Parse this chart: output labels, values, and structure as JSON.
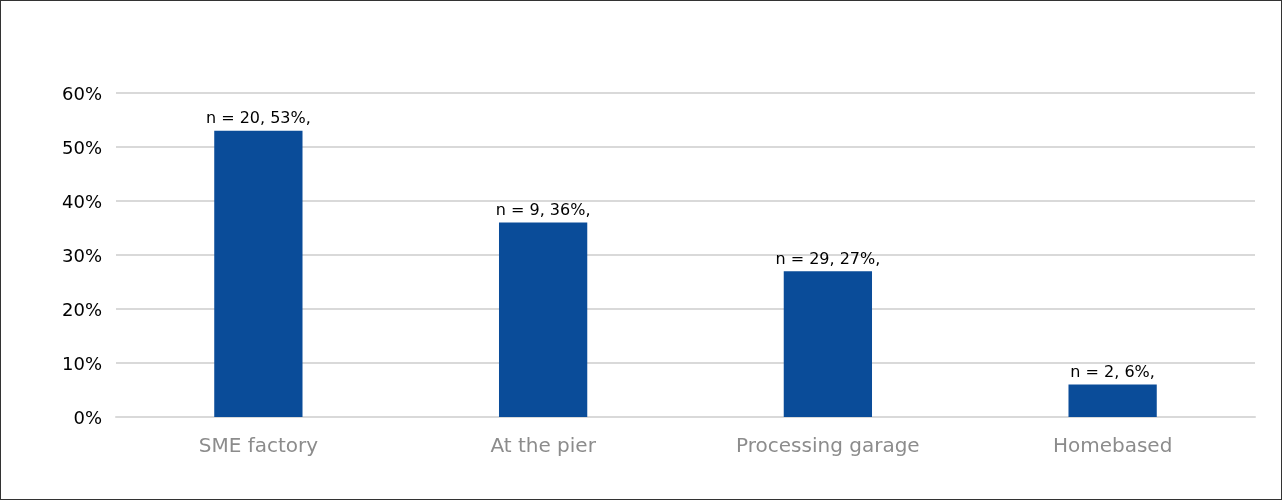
{
  "chart_data": {
    "type": "bar",
    "categories": [
      "SME factory",
      "At the pier",
      "Processing garage",
      "Homebased"
    ],
    "values": [
      53,
      36,
      27,
      6
    ],
    "value_labels": [
      "n = 20, 53%,",
      "n = 9, 36%,",
      "n = 29, 27%,",
      "n = 2, 6%,"
    ],
    "color": "#0a4c99",
    "ylim": [
      0,
      60
    ],
    "yticks": [
      {
        "value": 0,
        "label": "0%"
      },
      {
        "value": 10,
        "label": "10%"
      },
      {
        "value": 20,
        "label": "20%"
      },
      {
        "value": 30,
        "label": "30%"
      },
      {
        "value": 40,
        "label": "40%"
      },
      {
        "value": 50,
        "label": "50%"
      },
      {
        "value": 60,
        "label": "60%"
      }
    ],
    "grid": "y"
  }
}
